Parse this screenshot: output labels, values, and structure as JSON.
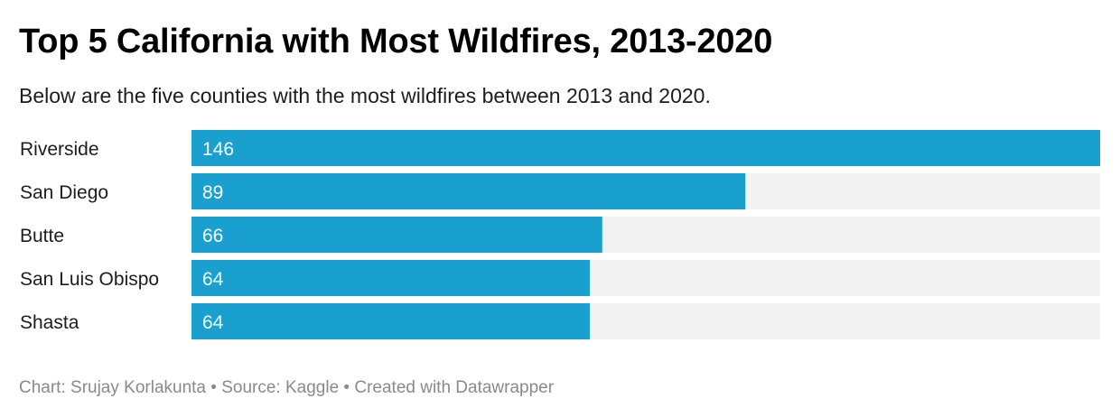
{
  "title": "Top 5 California with Most Wildfires, 2013-2020",
  "subtitle": "Below are the five counties with the most wildfires between 2013 and 2020.",
  "footer": {
    "chart_credit": "Chart: Srujay Korlakunta",
    "source": "Source: Kaggle",
    "created_with": "Created with Datawrapper",
    "separator": "•"
  },
  "colors": {
    "bar": "#1aa0cf",
    "track": "#f2f2f2",
    "value_label": "#ffffff",
    "category_label": "#1d1d1d",
    "footer": "#8a8a8a"
  },
  "chart_data": {
    "type": "bar",
    "orientation": "horizontal",
    "title": "Top 5 California with Most Wildfires, 2013-2020",
    "subtitle": "Below are the five counties with the most wildfires between 2013 and 2020.",
    "categories": [
      "Riverside",
      "San Diego",
      "Butte",
      "San Luis Obispo",
      "Shasta"
    ],
    "values": [
      146,
      89,
      66,
      64,
      64
    ],
    "xlim": [
      0,
      146
    ],
    "grid": false,
    "data_labels": "inside-left"
  }
}
